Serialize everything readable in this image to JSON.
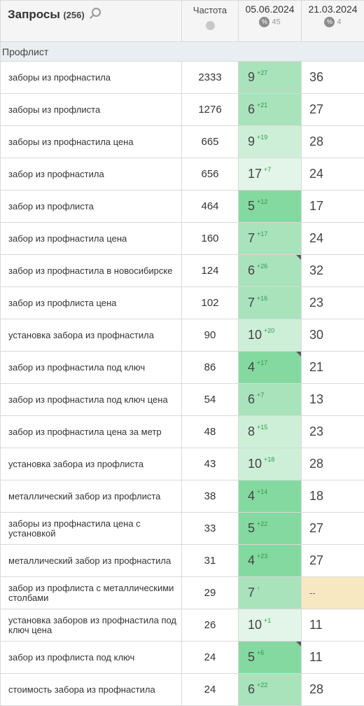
{
  "header": {
    "title": "Запросы",
    "count": "(256)",
    "frequency": "Частота",
    "date1": "05.06.2024",
    "date1_pct": "45",
    "date2": "21.03.2024",
    "date2_pct": "4",
    "pct_symbol": "%"
  },
  "group": "Профлист",
  "rows": [
    {
      "kw": "заборы из профнастила",
      "fr": "2333",
      "pos": "9",
      "d": "+27",
      "old": "36",
      "shade": "g2",
      "flag": false
    },
    {
      "kw": "заборы из профлиста",
      "fr": "1276",
      "pos": "6",
      "d": "+21",
      "old": "27",
      "shade": "g2",
      "flag": false
    },
    {
      "kw": "заборы из профнастила цена",
      "fr": "665",
      "pos": "9",
      "d": "+19",
      "old": "28",
      "shade": "g1",
      "flag": false
    },
    {
      "kw": "забор из профнастила",
      "fr": "656",
      "pos": "17",
      "d": "+7",
      "old": "24",
      "shade": "g4",
      "flag": false
    },
    {
      "kw": "забор из профлиста",
      "fr": "464",
      "pos": "5",
      "d": "+12",
      "old": "17",
      "shade": "g3",
      "flag": false
    },
    {
      "kw": "забор из профнастила цена",
      "fr": "160",
      "pos": "7",
      "d": "+17",
      "old": "24",
      "shade": "g2",
      "flag": false
    },
    {
      "kw": "забор из профнастила в новосибирске",
      "fr": "124",
      "pos": "6",
      "d": "+26",
      "old": "32",
      "shade": "g2",
      "flag": true
    },
    {
      "kw": "забор из профлиста цена",
      "fr": "102",
      "pos": "7",
      "d": "+16",
      "old": "23",
      "shade": "g2",
      "flag": false
    },
    {
      "kw": "установка забора из профнастила",
      "fr": "90",
      "pos": "10",
      "d": "+20",
      "old": "30",
      "shade": "g1",
      "flag": false
    },
    {
      "kw": "забор из профнастила под ключ",
      "fr": "86",
      "pos": "4",
      "d": "+17",
      "old": "21",
      "shade": "g3",
      "flag": true
    },
    {
      "kw": "забор из профнастила под ключ цена",
      "fr": "54",
      "pos": "6",
      "d": "+7",
      "old": "13",
      "shade": "g2",
      "flag": false
    },
    {
      "kw": "забор из профнастила цена за метр",
      "fr": "48",
      "pos": "8",
      "d": "+15",
      "old": "23",
      "shade": "g1",
      "flag": false
    },
    {
      "kw": "установка забора из профлиста",
      "fr": "43",
      "pos": "10",
      "d": "+18",
      "old": "28",
      "shade": "g1",
      "flag": false
    },
    {
      "kw": "металлический забор из профлиста",
      "fr": "38",
      "pos": "4",
      "d": "+14",
      "old": "18",
      "shade": "g3",
      "flag": false
    },
    {
      "kw": "заборы из профнастила цена с установкой",
      "fr": "33",
      "pos": "5",
      "d": "+22",
      "old": "27",
      "shade": "g3",
      "flag": false
    },
    {
      "kw": "металлический забор из профнастила",
      "fr": "31",
      "pos": "4",
      "d": "+23",
      "old": "27",
      "shade": "g3",
      "flag": false
    },
    {
      "kw": "забор из профлиста с металлическими столбами",
      "fr": "29",
      "pos": "7",
      "d": "↑",
      "old": "--",
      "shade": "g2",
      "flag": false
    },
    {
      "kw": "установка заборов из профнастила под ключ цена",
      "fr": "26",
      "pos": "10",
      "d": "+1",
      "old": "11",
      "shade": "g4",
      "flag": false
    },
    {
      "kw": "забор из профлиста под ключ",
      "fr": "24",
      "pos": "5",
      "d": "+6",
      "old": "11",
      "shade": "g3",
      "flag": true
    },
    {
      "kw": "стоимость забора из профнастила",
      "fr": "24",
      "pos": "6",
      "d": "+22",
      "old": "28",
      "shade": "g2",
      "flag": false
    }
  ],
  "colors": {
    "header_bg": "#f5f5f5",
    "group_bg": "#e9eef2",
    "delta": "#2e9b44",
    "empty_bg": "#f8e8c2"
  }
}
